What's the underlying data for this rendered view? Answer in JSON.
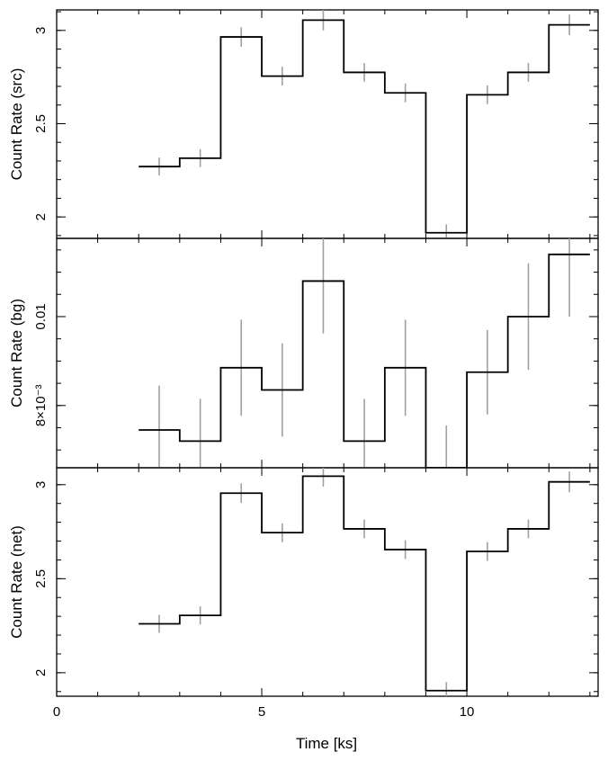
{
  "chart_data": {
    "type": "line",
    "style": "step-with-error-bars",
    "x_label": "Time [ks]",
    "x_range": [
      0,
      13.2
    ],
    "x_ticks": [
      {
        "v": 0,
        "label": "0"
      },
      {
        "v": 5,
        "label": "5"
      },
      {
        "v": 10,
        "label": "10"
      }
    ],
    "x_bins": [
      [
        2,
        3
      ],
      [
        3,
        4
      ],
      [
        4,
        5
      ],
      [
        5,
        6
      ],
      [
        6,
        7
      ],
      [
        7,
        8
      ],
      [
        8,
        9
      ],
      [
        9,
        10
      ],
      [
        10,
        11
      ],
      [
        11,
        12
      ],
      [
        12,
        13
      ]
    ],
    "x_centers": [
      2.5,
      3.5,
      4.5,
      5.5,
      6.5,
      7.5,
      8.5,
      9.5,
      10.5,
      11.5,
      12.5
    ],
    "step_color": "#000000",
    "error_color": "#a0a0a0",
    "panels": [
      {
        "name": "src",
        "y_label": "Count Rate (src)",
        "y_range": [
          1.885,
          3.11
        ],
        "y_ticks": [
          {
            "v": 2,
            "label": "2"
          },
          {
            "v": 2.5,
            "label": "2.5"
          },
          {
            "v": 3,
            "label": "3"
          }
        ],
        "values": [
          2.27,
          2.315,
          2.965,
          2.755,
          3.055,
          2.775,
          2.665,
          1.915,
          2.655,
          2.775,
          3.03
        ],
        "errors": [
          0.048,
          0.048,
          0.052,
          0.05,
          0.055,
          0.05,
          0.05,
          0.045,
          0.05,
          0.05,
          0.055
        ]
      },
      {
        "name": "bg",
        "y_label": "Count Rate (bg)",
        "y_range": [
          0.0066,
          0.01176
        ],
        "y_ticks": [
          {
            "v": 0.008,
            "label": "8×10⁻³"
          },
          {
            "v": 0.01,
            "label": "0.01"
          }
        ],
        "values": [
          0.00745,
          0.0072,
          0.00885,
          0.00835,
          0.0108,
          0.0072,
          0.00885,
          0.0066,
          0.00875,
          0.01,
          0.0114
        ],
        "errors": [
          0.001,
          0.00095,
          0.00108,
          0.00105,
          0.00118,
          0.00095,
          0.00108,
          0.00095,
          0.00095,
          0.0012,
          0.0014
        ]
      },
      {
        "name": "net",
        "y_label": "Count Rate (net)",
        "y_range": [
          1.875,
          3.09
        ],
        "y_ticks": [
          {
            "v": 2,
            "label": "2"
          },
          {
            "v": 2.5,
            "label": "2.5"
          },
          {
            "v": 3,
            "label": "3"
          }
        ],
        "values": [
          2.26,
          2.305,
          2.955,
          2.745,
          3.045,
          2.765,
          2.655,
          1.905,
          2.645,
          2.765,
          3.015
        ],
        "errors": [
          0.048,
          0.048,
          0.052,
          0.05,
          0.055,
          0.05,
          0.05,
          0.045,
          0.05,
          0.05,
          0.055
        ]
      }
    ]
  }
}
